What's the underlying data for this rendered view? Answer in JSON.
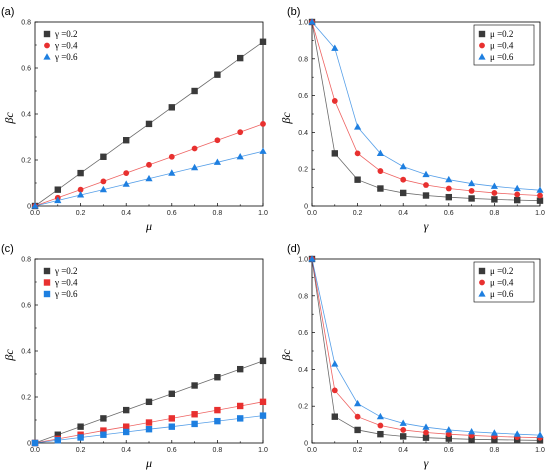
{
  "chart_data": [
    {
      "panel": "(a)",
      "type": "line",
      "xlabel": "μ",
      "ylabel": "βc",
      "xlim": [
        0,
        1
      ],
      "ylim": [
        0,
        0.8
      ],
      "xticks": [
        "0.0",
        "0.2",
        "0.4",
        "0.6",
        "0.8",
        "1.0"
      ],
      "yticks": [
        "0",
        "0.2",
        "0.4",
        "0.6",
        "0.8"
      ],
      "legend_position": "top-left",
      "x": [
        0,
        0.1,
        0.2,
        0.3,
        0.4,
        0.5,
        0.6,
        0.7,
        0.8,
        0.9,
        1.0
      ],
      "series": [
        {
          "name": "γ =0.2",
          "color": "#3a3a3a",
          "marker": "square",
          "values": [
            0,
            0.071,
            0.143,
            0.214,
            0.286,
            0.357,
            0.429,
            0.5,
            0.571,
            0.643,
            0.714
          ]
        },
        {
          "name": "γ =0.4",
          "color": "#e8302f",
          "marker": "circle",
          "values": [
            0,
            0.036,
            0.071,
            0.107,
            0.143,
            0.179,
            0.214,
            0.25,
            0.286,
            0.321,
            0.357
          ]
        },
        {
          "name": "γ =0.6",
          "color": "#1e7fe0",
          "marker": "triangle",
          "values": [
            0,
            0.024,
            0.048,
            0.071,
            0.095,
            0.119,
            0.143,
            0.167,
            0.19,
            0.214,
            0.238
          ]
        }
      ]
    },
    {
      "panel": "(b)",
      "type": "line",
      "xlabel": "γ",
      "ylabel": "βc",
      "xlim": [
        0,
        1
      ],
      "ylim": [
        0,
        1.0
      ],
      "xticks": [
        "0.0",
        "0.2",
        "0.4",
        "0.6",
        "0.8",
        "1.0"
      ],
      "yticks": [
        "0",
        "0.2",
        "0.4",
        "0.6",
        "0.8",
        "1.0"
      ],
      "legend_position": "top-right",
      "x": [
        0,
        0.1,
        0.2,
        0.3,
        0.4,
        0.5,
        0.6,
        0.7,
        0.8,
        0.9,
        1.0
      ],
      "series": [
        {
          "name": "μ =0.2",
          "color": "#3a3a3a",
          "marker": "square",
          "values": [
            1.0,
            0.286,
            0.143,
            0.095,
            0.071,
            0.057,
            0.048,
            0.041,
            0.036,
            0.032,
            0.029
          ]
        },
        {
          "name": "μ =0.4",
          "color": "#e8302f",
          "marker": "circle",
          "values": [
            1.0,
            0.571,
            0.286,
            0.19,
            0.143,
            0.114,
            0.095,
            0.082,
            0.071,
            0.063,
            0.057
          ]
        },
        {
          "name": "μ =0.6",
          "color": "#1e7fe0",
          "marker": "triangle",
          "values": [
            1.0,
            0.857,
            0.429,
            0.286,
            0.214,
            0.171,
            0.143,
            0.122,
            0.107,
            0.095,
            0.086
          ]
        }
      ]
    },
    {
      "panel": "(c)",
      "type": "line",
      "xlabel": "μ",
      "ylabel": "βc",
      "xlim": [
        0,
        1
      ],
      "ylim": [
        0,
        0.8
      ],
      "xticks": [
        "0.0",
        "0.2",
        "0.4",
        "0.6",
        "0.8",
        "1.0"
      ],
      "yticks": [
        "0",
        "0.2",
        "0.4",
        "0.6",
        "0.8"
      ],
      "legend_position": "top-left",
      "x": [
        0,
        0.1,
        0.2,
        0.3,
        0.4,
        0.5,
        0.6,
        0.7,
        0.8,
        0.9,
        1.0
      ],
      "series": [
        {
          "name": "γ =0.2",
          "color": "#3a3a3a",
          "marker": "square",
          "values": [
            0,
            0.036,
            0.071,
            0.107,
            0.143,
            0.179,
            0.214,
            0.25,
            0.286,
            0.321,
            0.357
          ]
        },
        {
          "name": "γ =0.4",
          "color": "#e8302f",
          "marker": "square",
          "values": [
            0,
            0.018,
            0.036,
            0.054,
            0.071,
            0.089,
            0.107,
            0.125,
            0.143,
            0.161,
            0.179
          ]
        },
        {
          "name": "γ =0.6",
          "color": "#1e7fe0",
          "marker": "square",
          "values": [
            0,
            0.012,
            0.024,
            0.036,
            0.048,
            0.06,
            0.071,
            0.083,
            0.095,
            0.107,
            0.119
          ]
        }
      ]
    },
    {
      "panel": "(d)",
      "type": "line",
      "xlabel": "γ",
      "ylabel": "βc",
      "xlim": [
        0,
        1
      ],
      "ylim": [
        0,
        1.0
      ],
      "xticks": [
        "0.0",
        "0.2",
        "0.4",
        "0.6",
        "0.8",
        "1.0"
      ],
      "yticks": [
        "0",
        "0.2",
        "0.4",
        "0.6",
        "0.8",
        "1.0"
      ],
      "legend_position": "top-right",
      "x": [
        0,
        0.1,
        0.2,
        0.3,
        0.4,
        0.5,
        0.6,
        0.7,
        0.8,
        0.9,
        1.0
      ],
      "series": [
        {
          "name": "μ =0.2",
          "color": "#3a3a3a",
          "marker": "square",
          "values": [
            1.0,
            0.143,
            0.071,
            0.048,
            0.036,
            0.029,
            0.024,
            0.02,
            0.018,
            0.016,
            0.014
          ]
        },
        {
          "name": "μ =0.4",
          "color": "#e8302f",
          "marker": "circle",
          "values": [
            1.0,
            0.286,
            0.143,
            0.095,
            0.071,
            0.057,
            0.048,
            0.041,
            0.036,
            0.032,
            0.029
          ]
        },
        {
          "name": "μ =0.6",
          "color": "#1e7fe0",
          "marker": "triangle",
          "values": [
            1.0,
            0.429,
            0.214,
            0.143,
            0.107,
            0.086,
            0.071,
            0.061,
            0.054,
            0.048,
            0.043
          ]
        }
      ]
    }
  ]
}
